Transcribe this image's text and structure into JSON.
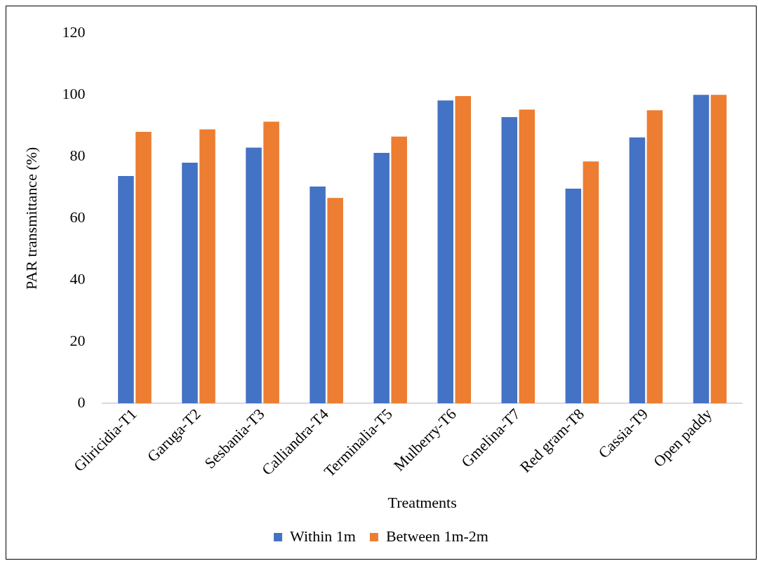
{
  "chart_data": {
    "type": "bar",
    "xlabel": "Treatments",
    "ylabel": "PAR transmittance (%)",
    "categories": [
      "Gliricidia-T1",
      "Garuga-T2",
      "Sesbania-T3",
      "Calliandra-T4",
      "Terminalia-T5",
      "Mulberry-T6",
      "Gmelina-T7",
      "Red gram-T8",
      "Cassia-T9",
      "Open paddy"
    ],
    "series": [
      {
        "name": "Within 1m",
        "color": "#4472c4",
        "values": [
          73.7,
          78.0,
          82.9,
          70.3,
          81.2,
          98.2,
          92.8,
          69.6,
          86.2,
          100
        ]
      },
      {
        "name": "Between 1m-2m",
        "color": "#ed7d31",
        "values": [
          88.0,
          88.8,
          91.3,
          66.6,
          86.5,
          99.6,
          95.2,
          78.4,
          95.0,
          100
        ]
      }
    ],
    "ylim": [
      0,
      120
    ],
    "yticks": [
      0,
      20,
      40,
      60,
      80,
      100,
      120
    ],
    "grid": false,
    "legend": "bottom"
  }
}
